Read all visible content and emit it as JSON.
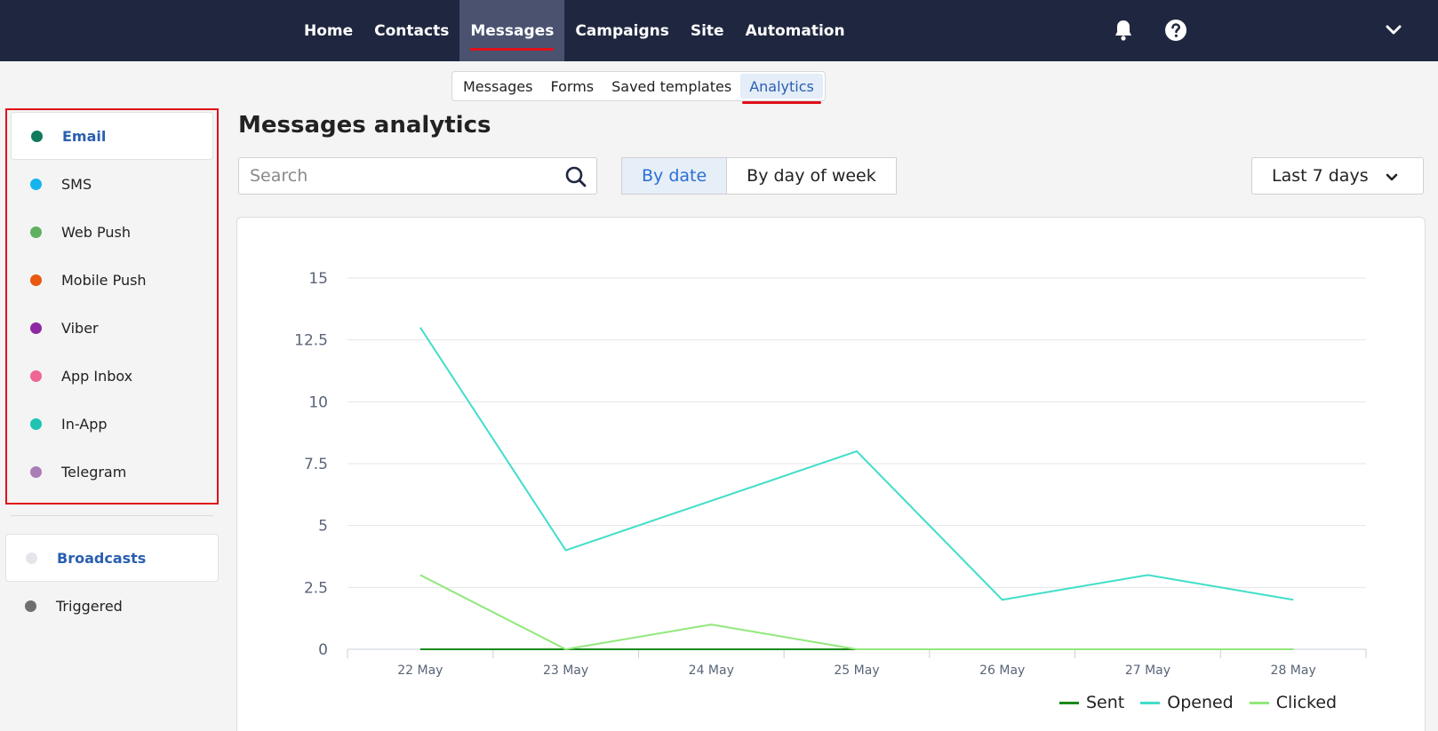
{
  "topnav": {
    "items": [
      {
        "label": "Home",
        "active": false
      },
      {
        "label": "Contacts",
        "active": false
      },
      {
        "label": "Messages",
        "active": true
      },
      {
        "label": "Campaigns",
        "active": false
      },
      {
        "label": "Site",
        "active": false
      },
      {
        "label": "Automation",
        "active": false
      }
    ],
    "icons": [
      "bell-icon",
      "help-icon",
      "chevron-down-icon"
    ]
  },
  "subnav": {
    "items": [
      {
        "label": "Messages",
        "active": false
      },
      {
        "label": "Forms",
        "active": false
      },
      {
        "label": "Saved templates",
        "active": false
      },
      {
        "label": "Analytics",
        "active": true
      }
    ]
  },
  "sidebar": {
    "channels": [
      {
        "label": "Email",
        "color": "#0f7a5c",
        "selected": true
      },
      {
        "label": "SMS",
        "color": "#16b4ee",
        "selected": false
      },
      {
        "label": "Web Push",
        "color": "#5fb160",
        "selected": false
      },
      {
        "label": "Mobile Push",
        "color": "#e8580f",
        "selected": false
      },
      {
        "label": "Viber",
        "color": "#8e27a3",
        "selected": false
      },
      {
        "label": "App Inbox",
        "color": "#f06591",
        "selected": false
      },
      {
        "label": "In-App",
        "color": "#1ec4b0",
        "selected": false
      },
      {
        "label": "Telegram",
        "color": "#a97eb7",
        "selected": false
      }
    ],
    "types": [
      {
        "label": "Broadcasts",
        "color": "#e4e6ec",
        "selected": true
      },
      {
        "label": "Triggered",
        "color": "#6f6f6f",
        "selected": false
      }
    ]
  },
  "main": {
    "title": "Messages analytics",
    "search": {
      "placeholder": "Search",
      "value": ""
    },
    "toggle": {
      "by_date": "By date",
      "by_week": "By day of week",
      "active": "by_date"
    },
    "range": {
      "value": "Last 7 days"
    }
  },
  "colors": {
    "sent": "#1a8a1a",
    "opened": "#40dec8",
    "clicked": "#90e87a",
    "accent": "#2a6fd6"
  },
  "chart_data": {
    "type": "line",
    "x": [
      "22 May",
      "23 May",
      "24 May",
      "25 May",
      "26 May",
      "27 May",
      "28 May"
    ],
    "series": [
      {
        "name": "Sent",
        "values": [
          0,
          0,
          0,
          0,
          0,
          0,
          0
        ]
      },
      {
        "name": "Opened",
        "values": [
          13,
          4,
          6,
          8,
          2,
          3,
          2
        ]
      },
      {
        "name": "Clicked",
        "values": [
          3,
          0,
          1,
          0,
          0,
          0,
          0
        ]
      }
    ],
    "yticks": [
      "0",
      "2.5",
      "5",
      "7.5",
      "10",
      "12.5",
      "15"
    ],
    "ylim": [
      0,
      15
    ],
    "grid": true,
    "legend": "bottom-right",
    "title": "",
    "xlabel": "",
    "ylabel": ""
  }
}
